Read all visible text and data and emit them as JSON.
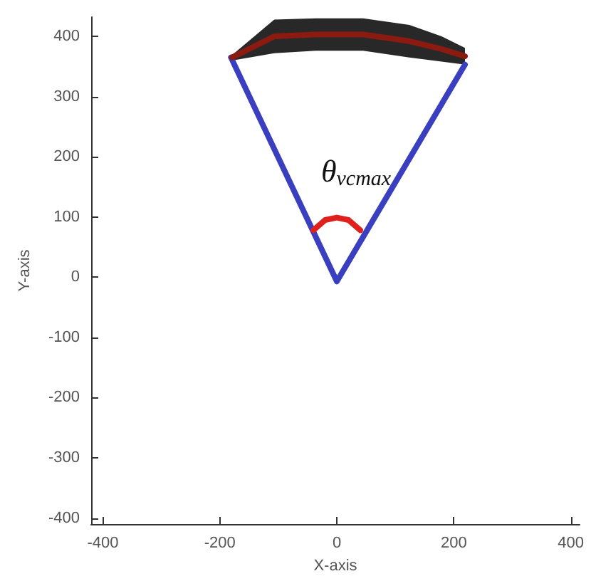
{
  "chart_data": {
    "type": "line",
    "xlabel": "X-axis",
    "ylabel": "Y-axis",
    "xlim": [
      -420,
      415
    ],
    "ylim": [
      -410,
      432
    ],
    "xticks": [
      -400,
      -200,
      0,
      200,
      400
    ],
    "yticks": [
      -400,
      -300,
      -200,
      -100,
      0,
      100,
      200,
      300,
      400
    ],
    "grid": false,
    "marker": "none",
    "line_style": "solid",
    "annotations": [
      "θ$_{vcmax}$"
    ],
    "series": [
      {
        "color": "#3a3fc0",
        "x": [
          -181,
          0,
          219
        ],
        "values": [
          365,
          -7,
          353
        ]
      },
      {
        "color": "#e0201b",
        "x": [
          -40,
          -20,
          0,
          20,
          40
        ],
        "values": [
          78,
          95,
          99,
          95,
          78
        ]
      },
      {
        "color": "#8b1a10",
        "x": [
          -179,
          -107,
          -36,
          45,
          124,
          179,
          219
        ],
        "values": [
          365,
          400,
          403,
          403,
          392,
          379,
          367
        ],
        "lower": [
          360,
          372,
          376,
          376,
          365,
          358,
          353
        ],
        "upper": [
          369,
          428,
          430,
          430,
          419,
          400,
          381
        ]
      }
    ]
  }
}
